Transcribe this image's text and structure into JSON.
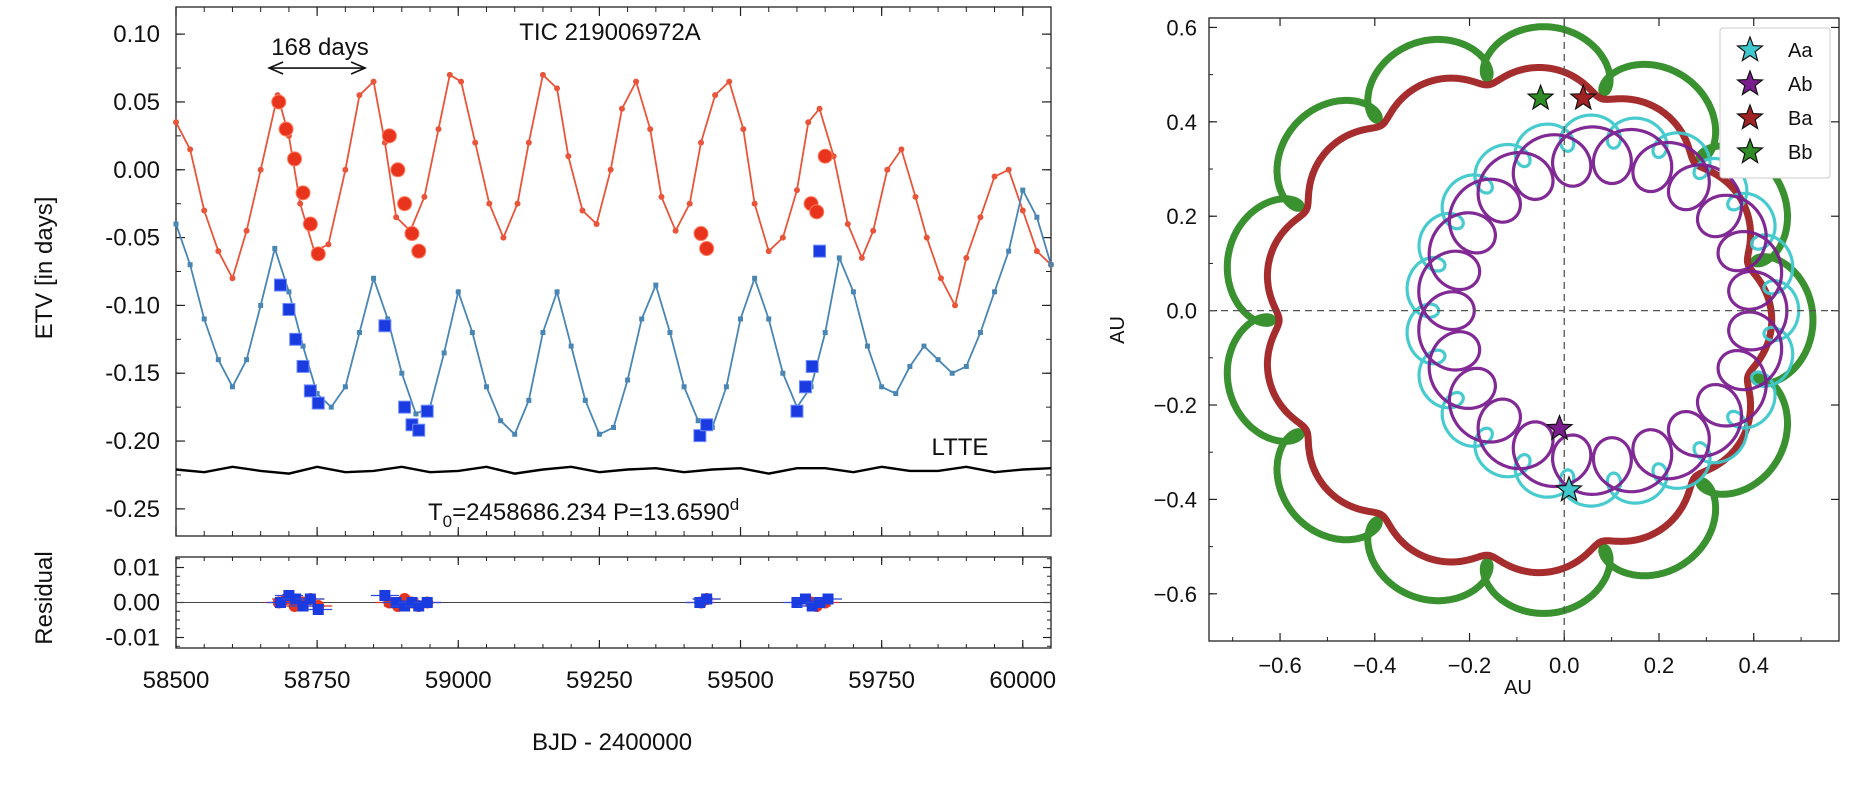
{
  "chart_data": [
    {
      "type": "line",
      "title": "TIC 219006972A",
      "ylabel": "ETV [in days]",
      "xlabel": "BJD - 2400000",
      "xlim": [
        58500,
        60050
      ],
      "ylim": [
        -0.27,
        0.12
      ],
      "x_ticks": [
        "58500",
        "58750",
        "59000",
        "59250",
        "59500",
        "59750",
        "60000"
      ],
      "y_ticks": [
        "0.10",
        "0.05",
        "0.00",
        "-0.05",
        "-0.10",
        "-0.15",
        "-0.20",
        "-0.25"
      ],
      "annotations": {
        "period_arrow": "168 days",
        "ltte_label": "LTTE",
        "ephemeris_prefix": "T",
        "ephemeris_sub": "0",
        "ephemeris_mid": "=2458686.234 P=13.6590",
        "ephemeris_sup": "d"
      },
      "arrow_x": [
        58665,
        58835
      ],
      "arrow_y": 0.075,
      "series": [
        {
          "kind": "primary-model",
          "color": "#e8553a",
          "x": [
            58500,
            58525,
            58550,
            58575,
            58600,
            58625,
            58650,
            58680,
            58700,
            58720,
            58745,
            58770,
            58800,
            58825,
            58850,
            58870,
            58890,
            58915,
            58940,
            58965,
            58985,
            59005,
            59030,
            59055,
            59080,
            59105,
            59125,
            59150,
            59175,
            59195,
            59220,
            59245,
            59270,
            59290,
            59315,
            59340,
            59360,
            59385,
            59410,
            59430,
            59455,
            59480,
            59505,
            59525,
            59550,
            59575,
            59600,
            59620,
            59640,
            59665,
            59690,
            59715,
            59735,
            59760,
            59785,
            59810,
            59830,
            59855,
            59880,
            59900,
            59925,
            59950,
            59975,
            60000,
            60025,
            60050
          ],
          "y": [
            0.035,
            0.015,
            -0.03,
            -0.06,
            -0.08,
            -0.045,
            0.0,
            0.055,
            0.025,
            -0.025,
            -0.06,
            -0.055,
            0.0,
            0.055,
            0.065,
            0.02,
            -0.035,
            -0.045,
            -0.02,
            0.03,
            0.07,
            0.065,
            0.02,
            -0.025,
            -0.05,
            -0.025,
            0.02,
            0.07,
            0.06,
            0.01,
            -0.03,
            -0.04,
            0.0,
            0.045,
            0.065,
            0.03,
            -0.02,
            -0.045,
            -0.025,
            0.02,
            0.055,
            0.065,
            0.03,
            -0.025,
            -0.06,
            -0.05,
            -0.015,
            0.035,
            0.045,
            0.01,
            -0.04,
            -0.065,
            -0.045,
            0.0,
            0.015,
            -0.02,
            -0.05,
            -0.08,
            -0.1,
            -0.065,
            -0.035,
            -0.005,
            0.0,
            -0.03,
            -0.06,
            -0.07
          ]
        },
        {
          "kind": "secondary-model",
          "color": "#4a86b4",
          "x": [
            58500,
            58525,
            58550,
            58575,
            58600,
            58625,
            58650,
            58675,
            58700,
            58725,
            58750,
            58775,
            58800,
            58825,
            58850,
            58875,
            58900,
            58925,
            58950,
            58975,
            59000,
            59025,
            59050,
            59075,
            59100,
            59125,
            59150,
            59175,
            59200,
            59225,
            59250,
            59275,
            59300,
            59325,
            59350,
            59375,
            59400,
            59425,
            59450,
            59475,
            59500,
            59525,
            59550,
            59575,
            59600,
            59625,
            59650,
            59675,
            59700,
            59725,
            59750,
            59775,
            59800,
            59825,
            59850,
            59875,
            59900,
            59925,
            59950,
            59975,
            60000,
            60025,
            60050
          ],
          "y": [
            -0.04,
            -0.07,
            -0.11,
            -0.14,
            -0.16,
            -0.14,
            -0.1,
            -0.058,
            -0.09,
            -0.13,
            -0.165,
            -0.175,
            -0.16,
            -0.12,
            -0.08,
            -0.11,
            -0.15,
            -0.18,
            -0.175,
            -0.135,
            -0.09,
            -0.12,
            -0.16,
            -0.185,
            -0.195,
            -0.17,
            -0.12,
            -0.09,
            -0.13,
            -0.17,
            -0.195,
            -0.19,
            -0.155,
            -0.11,
            -0.085,
            -0.12,
            -0.16,
            -0.185,
            -0.19,
            -0.16,
            -0.11,
            -0.08,
            -0.11,
            -0.15,
            -0.175,
            -0.16,
            -0.12,
            -0.065,
            -0.09,
            -0.13,
            -0.16,
            -0.165,
            -0.145,
            -0.13,
            -0.14,
            -0.15,
            -0.145,
            -0.12,
            -0.09,
            -0.06,
            -0.015,
            -0.035,
            -0.07
          ]
        },
        {
          "kind": "primary-observed",
          "color": "#e8331d",
          "x": [
            58682,
            58695,
            58710,
            58725,
            58738,
            58752,
            58878,
            58893,
            58905,
            58918,
            58930,
            59430,
            59440,
            59625,
            59635,
            59650
          ],
          "y": [
            0.05,
            0.03,
            0.008,
            -0.017,
            -0.04,
            -0.062,
            0.025,
            0.0,
            -0.025,
            -0.047,
            -0.06,
            -0.047,
            -0.058,
            -0.025,
            -0.031,
            0.01
          ]
        },
        {
          "kind": "secondary-observed",
          "color": "#1a3be0",
          "x": [
            58685,
            58700,
            58712,
            58725,
            58738,
            58752,
            58870,
            58905,
            58918,
            58930,
            58945,
            59428,
            59440,
            59600,
            59615,
            59627,
            59640
          ],
          "y": [
            -0.085,
            -0.103,
            -0.125,
            -0.145,
            -0.163,
            -0.172,
            -0.115,
            -0.175,
            -0.188,
            -0.192,
            -0.178,
            -0.196,
            -0.188,
            -0.178,
            -0.16,
            -0.145,
            -0.06
          ]
        },
        {
          "kind": "ltte",
          "color": "#000000",
          "x": [
            58500,
            58550,
            58600,
            58650,
            58700,
            58750,
            58800,
            58850,
            58900,
            58950,
            59000,
            59050,
            59100,
            59150,
            59200,
            59250,
            59300,
            59350,
            59400,
            59450,
            59500,
            59550,
            59600,
            59650,
            59700,
            59750,
            59800,
            59850,
            59900,
            59950,
            60000,
            60050
          ],
          "y": [
            -0.221,
            -0.223,
            -0.219,
            -0.222,
            -0.224,
            -0.219,
            -0.223,
            -0.222,
            -0.219,
            -0.223,
            -0.222,
            -0.219,
            -0.224,
            -0.221,
            -0.219,
            -0.223,
            -0.221,
            -0.22,
            -0.223,
            -0.221,
            -0.22,
            -0.224,
            -0.22,
            -0.22,
            -0.223,
            -0.219,
            -0.222,
            -0.222,
            -0.219,
            -0.223,
            -0.221,
            -0.22
          ]
        }
      ]
    },
    {
      "type": "scatter",
      "ylabel": "Residual",
      "xlabel": "BJD - 2400000",
      "xlim": [
        58500,
        60050
      ],
      "ylim": [
        -0.013,
        0.013
      ],
      "y_ticks": [
        "0.01",
        "0.00",
        "-0.01"
      ],
      "series": [
        {
          "kind": "primary-residual",
          "color": "#e8331d",
          "x": [
            58682,
            58695,
            58710,
            58725,
            58738,
            58752,
            58878,
            58893,
            58905,
            58918,
            58930,
            58945,
            59430,
            59440,
            59625,
            59635,
            59650
          ],
          "y": [
            0.0,
            0.001,
            -0.001,
            0.0,
            0.001,
            -0.001,
            0.0,
            -0.001,
            0.001,
            0.0,
            -0.001,
            0.0,
            0.0,
            0.001,
            0.0,
            -0.001,
            0.0
          ]
        },
        {
          "kind": "secondary-residual",
          "color": "#1a3be0",
          "x": [
            58685,
            58700,
            58712,
            58725,
            58738,
            58752,
            58870,
            58890,
            58905,
            58918,
            58930,
            58945,
            59428,
            59440,
            59600,
            59615,
            59627,
            59640,
            59655
          ],
          "y": [
            0.0,
            0.002,
            0.001,
            -0.001,
            0.001,
            -0.002,
            0.002,
            0.0,
            -0.001,
            0.0,
            -0.001,
            0.0,
            0.0,
            0.001,
            0.0,
            0.001,
            -0.001,
            0.0,
            0.001
          ]
        }
      ]
    },
    {
      "type": "line",
      "xlabel": "AU",
      "ylabel": "AU",
      "xlim": [
        -0.75,
        0.58
      ],
      "ylim": [
        -0.7,
        0.62
      ],
      "x_ticks": [
        "−0.6",
        "−0.4",
        "−0.2",
        "0.0",
        "0.2",
        "0.4"
      ],
      "y_ticks": [
        "0.6",
        "0.4",
        "0.2",
        "0.0",
        "−0.2",
        "−0.4",
        "−0.6"
      ],
      "legend_position": "top-right",
      "series": [
        {
          "name": "Aa",
          "color": "#3ec8cc",
          "center": [
            0.08,
            0.0
          ],
          "radius": 0.38,
          "loop_radius": 0.035,
          "loops": 24,
          "star": [
            0.01,
            -0.38
          ]
        },
        {
          "name": "Ab",
          "color": "#7a1e8e",
          "center": [
            0.08,
            0.0
          ],
          "radius": 0.33,
          "loop_radius": 0.06,
          "loops": 24,
          "star": [
            -0.01,
            -0.25
          ]
        },
        {
          "name": "Ba",
          "color": "#a12222",
          "center": [
            -0.1,
            -0.02
          ],
          "radius": 0.52,
          "loop_radius": 0.018,
          "loops": 14,
          "star": [
            0.04,
            0.45
          ]
        },
        {
          "name": "Bb",
          "color": "#2e8b25",
          "center": [
            -0.1,
            -0.02
          ],
          "radius": 0.57,
          "loop_radius": 0.055,
          "loops": 14,
          "star": [
            -0.05,
            0.45
          ]
        }
      ]
    }
  ]
}
